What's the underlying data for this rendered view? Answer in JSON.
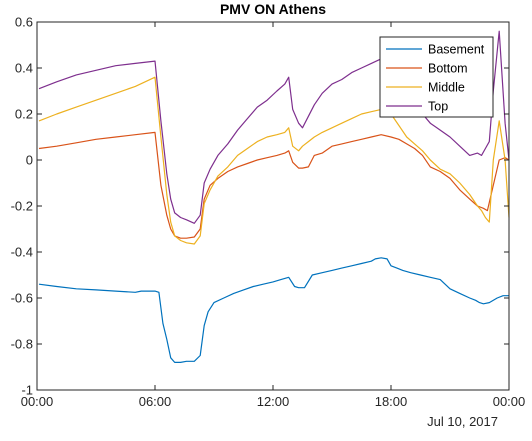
{
  "chart_data": {
    "type": "line",
    "title": "PMV ON Athens",
    "xlabel": "",
    "ylabel": "",
    "date_label": "Jul 10, 2017",
    "xlim": [
      0,
      24
    ],
    "ylim": [
      -1,
      0.6
    ],
    "x_ticks": [
      {
        "value": 0,
        "label": "00:00"
      },
      {
        "value": 6,
        "label": "06:00"
      },
      {
        "value": 12,
        "label": "12:00"
      },
      {
        "value": 18,
        "label": "18:00"
      },
      {
        "value": 24,
        "label": "00:00"
      }
    ],
    "y_ticks": [
      {
        "value": -1,
        "label": "-1"
      },
      {
        "value": -0.8,
        "label": "-0.8"
      },
      {
        "value": -0.6,
        "label": "-0.6"
      },
      {
        "value": -0.4,
        "label": "-0.4"
      },
      {
        "value": -0.2,
        "label": "-0.2"
      },
      {
        "value": 0,
        "label": "0"
      },
      {
        "value": 0.2,
        "label": "0.2"
      },
      {
        "value": 0.4,
        "label": "0.4"
      },
      {
        "value": 0.6,
        "label": "0.6"
      }
    ],
    "grid": false,
    "legend_position": "top-right",
    "series": [
      {
        "name": "Basement",
        "color": "#0072BD",
        "x": [
          0.1,
          1,
          2,
          3,
          4,
          5,
          5.3,
          6,
          6.2,
          6.4,
          6.6,
          6.8,
          7.0,
          7.3,
          7.6,
          8.0,
          8.3,
          8.5,
          8.7,
          9.0,
          9.5,
          10.0,
          10.5,
          11.0,
          11.5,
          12.0,
          12.4,
          12.6,
          12.8,
          13.1,
          13.3,
          13.6,
          14.0,
          14.5,
          15.0,
          15.5,
          16.0,
          16.5,
          17.0,
          17.2,
          17.5,
          17.8,
          18.0,
          18.3,
          18.6,
          19.0,
          19.5,
          20.0,
          20.5,
          21.0,
          21.5,
          22.0,
          22.3,
          22.5,
          22.7,
          23.0,
          23.4,
          23.7,
          24.0
        ],
        "y": [
          -0.54,
          -0.55,
          -0.56,
          -0.565,
          -0.57,
          -0.575,
          -0.57,
          -0.57,
          -0.575,
          -0.71,
          -0.78,
          -0.86,
          -0.88,
          -0.88,
          -0.875,
          -0.875,
          -0.85,
          -0.72,
          -0.66,
          -0.62,
          -0.6,
          -0.58,
          -0.565,
          -0.55,
          -0.54,
          -0.53,
          -0.52,
          -0.515,
          -0.51,
          -0.55,
          -0.555,
          -0.555,
          -0.5,
          -0.49,
          -0.48,
          -0.47,
          -0.46,
          -0.45,
          -0.44,
          -0.43,
          -0.425,
          -0.43,
          -0.46,
          -0.47,
          -0.48,
          -0.49,
          -0.5,
          -0.51,
          -0.52,
          -0.56,
          -0.58,
          -0.6,
          -0.61,
          -0.62,
          -0.625,
          -0.62,
          -0.6,
          -0.59,
          -0.59
        ]
      },
      {
        "name": "Bottom",
        "color": "#D95319",
        "x": [
          0.1,
          1,
          2,
          3,
          4,
          5,
          6,
          6.3,
          6.6,
          6.8,
          7.0,
          7.3,
          7.6,
          8.0,
          8.3,
          8.5,
          8.8,
          9.2,
          9.7,
          10.2,
          10.7,
          11.2,
          11.7,
          12.2,
          12.6,
          12.8,
          13.0,
          13.3,
          13.5,
          13.8,
          14.1,
          14.5,
          15.0,
          15.5,
          16.0,
          16.5,
          17.0,
          17.5,
          18.0,
          18.4,
          18.8,
          19.2,
          19.6,
          20.0,
          20.5,
          21.0,
          21.5,
          22.0,
          22.4,
          22.7,
          22.9,
          23.2,
          23.5,
          23.8,
          24.0
        ],
        "y": [
          0.05,
          0.06,
          0.075,
          0.09,
          0.1,
          0.11,
          0.12,
          -0.11,
          -0.24,
          -0.3,
          -0.33,
          -0.34,
          -0.34,
          -0.335,
          -0.3,
          -0.17,
          -0.11,
          -0.08,
          -0.05,
          -0.03,
          -0.015,
          0.0,
          0.01,
          0.02,
          0.03,
          0.04,
          -0.01,
          -0.035,
          -0.035,
          -0.03,
          0.02,
          0.03,
          0.06,
          0.07,
          0.08,
          0.09,
          0.1,
          0.11,
          0.1,
          0.09,
          0.07,
          0.05,
          0.02,
          -0.03,
          -0.05,
          -0.08,
          -0.13,
          -0.17,
          -0.2,
          -0.21,
          -0.22,
          -0.11,
          0.0,
          0.01,
          0.0
        ]
      },
      {
        "name": "Middle",
        "color": "#EDB120",
        "x": [
          0.1,
          1,
          2,
          3,
          4,
          5,
          6,
          6.3,
          6.6,
          6.8,
          7.0,
          7.3,
          7.6,
          8.0,
          8.3,
          8.5,
          8.8,
          9.2,
          9.7,
          10.2,
          10.7,
          11.2,
          11.7,
          12.2,
          12.6,
          12.8,
          13.0,
          13.3,
          13.5,
          13.8,
          14.1,
          14.5,
          15.0,
          15.5,
          16.0,
          16.5,
          17.0,
          17.5,
          18.0,
          18.4,
          18.8,
          19.2,
          19.6,
          20.0,
          20.5,
          21.0,
          21.5,
          22.0,
          22.4,
          22.6,
          22.8,
          23.0,
          23.2,
          23.5,
          23.8,
          24.0
        ],
        "y": [
          0.17,
          0.2,
          0.23,
          0.26,
          0.29,
          0.32,
          0.36,
          0.1,
          -0.15,
          -0.27,
          -0.33,
          -0.35,
          -0.36,
          -0.365,
          -0.33,
          -0.19,
          -0.13,
          -0.07,
          -0.03,
          0.02,
          0.05,
          0.08,
          0.1,
          0.11,
          0.12,
          0.14,
          0.06,
          0.04,
          0.06,
          0.08,
          0.1,
          0.12,
          0.14,
          0.16,
          0.18,
          0.2,
          0.21,
          0.22,
          0.2,
          0.15,
          0.1,
          0.07,
          0.04,
          0.0,
          -0.04,
          -0.06,
          -0.1,
          -0.15,
          -0.2,
          -0.22,
          -0.25,
          -0.27,
          0.0,
          0.17,
          0.0,
          -0.25
        ]
      },
      {
        "name": "Top",
        "color": "#7E2F8E",
        "x": [
          0.1,
          1,
          2,
          3,
          4,
          5,
          6,
          6.3,
          6.6,
          6.8,
          7.0,
          7.3,
          7.6,
          8.0,
          8.3,
          8.5,
          8.8,
          9.2,
          9.7,
          10.2,
          10.7,
          11.2,
          11.7,
          12.2,
          12.6,
          12.8,
          13.0,
          13.3,
          13.5,
          13.8,
          14.1,
          14.5,
          15.0,
          15.5,
          16.0,
          16.5,
          17.0,
          17.5,
          18.0,
          18.4,
          18.8,
          19.2,
          19.6,
          20.0,
          20.5,
          21.0,
          21.5,
          22.0,
          22.4,
          22.6,
          22.8,
          23.0,
          23.2,
          23.5,
          23.8,
          24.0
        ],
        "y": [
          0.31,
          0.34,
          0.37,
          0.39,
          0.41,
          0.42,
          0.43,
          0.17,
          -0.06,
          -0.17,
          -0.23,
          -0.25,
          -0.26,
          -0.275,
          -0.24,
          -0.1,
          -0.04,
          0.02,
          0.07,
          0.13,
          0.18,
          0.23,
          0.26,
          0.3,
          0.33,
          0.36,
          0.22,
          0.16,
          0.14,
          0.19,
          0.24,
          0.29,
          0.33,
          0.35,
          0.38,
          0.4,
          0.42,
          0.44,
          0.4,
          0.34,
          0.29,
          0.24,
          0.2,
          0.16,
          0.13,
          0.1,
          0.06,
          0.02,
          0.03,
          0.02,
          0.05,
          0.08,
          0.3,
          0.56,
          0.16,
          0.0
        ]
      }
    ]
  }
}
